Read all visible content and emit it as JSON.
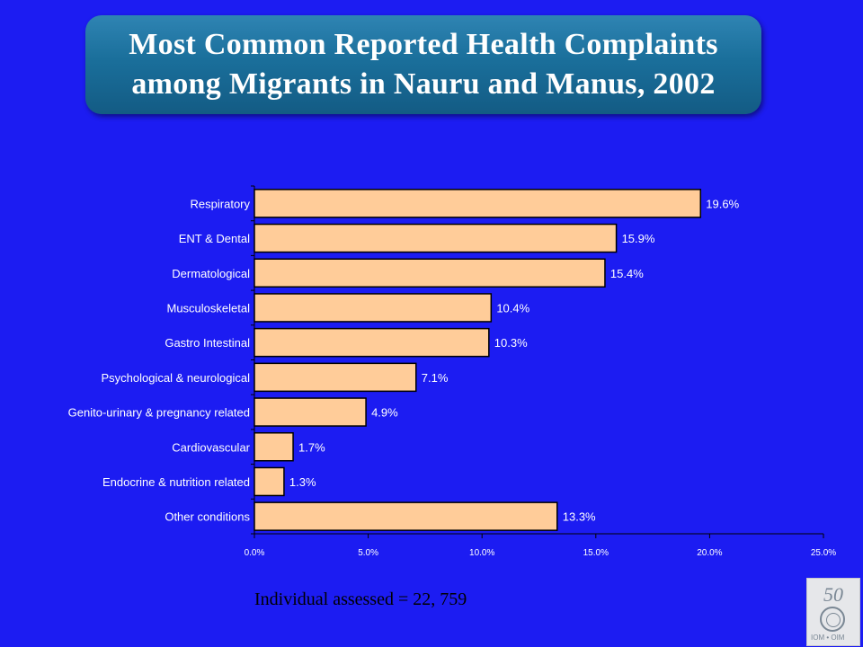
{
  "chart_data": {
    "type": "bar",
    "orientation": "horizontal",
    "title": "Most Common Reported Health Complaints among Migrants in Nauru and Manus, 2002",
    "title_lines": [
      "Most Common Reported Health Complaints",
      "among Migrants in Nauru and Manus, 2002"
    ],
    "categories": [
      "Respiratory",
      "ENT & Dental",
      "Dermatological",
      "Musculoskeletal",
      "Gastro Intestinal",
      "Psychological & neurological",
      "Genito-urinary & pregnancy related",
      "Cardiovascular",
      "Endocrine & nutrition related",
      "Other conditions"
    ],
    "values": [
      19.6,
      15.9,
      15.4,
      10.4,
      10.3,
      7.1,
      4.9,
      1.7,
      1.3,
      13.3
    ],
    "data_labels": [
      "19.6%",
      "15.9%",
      "15.4%",
      "10.4%",
      "10.3%",
      "7.1%",
      "4.9%",
      "1.7%",
      "1.3%",
      "13.3%"
    ],
    "x_ticks": [
      0,
      5,
      10,
      15,
      20,
      25
    ],
    "x_tick_labels": [
      "0.0%",
      "5.0%",
      "10.0%",
      "15.0%",
      "20.0%",
      "25.0%"
    ],
    "xlim": [
      0,
      25
    ],
    "xlabel": "",
    "ylabel": "",
    "grid": false,
    "legend": "none",
    "bar_color": "#ffcc99",
    "bar_edge_color": "#000000"
  },
  "footnote": "Individual assessed = 22, 759",
  "logo": {
    "mark": "50",
    "text": "IOM • OIM"
  },
  "colors": {
    "background": "#1c1cf2",
    "title_box": "#1a6f9b",
    "title_text": "#ffffff",
    "axis_text": "#ffffff"
  }
}
